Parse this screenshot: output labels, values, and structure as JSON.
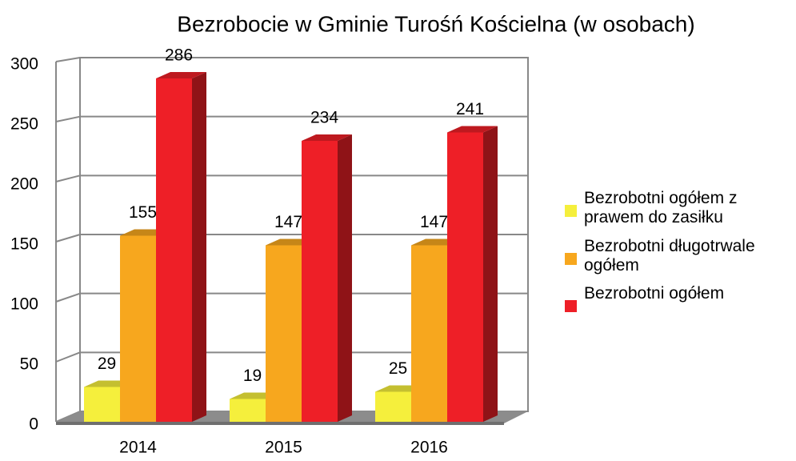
{
  "chart_data": {
    "type": "bar3d",
    "title": "Bezrobocie w Gminie Turośń Kościelna (w osobach)",
    "categories": [
      "2014",
      "2015",
      "2016"
    ],
    "series": [
      {
        "name": "Bezrobotni ogółem z prawem do zasiłku",
        "color": "#f5ef3c",
        "values": [
          29,
          19,
          25
        ]
      },
      {
        "name": "Bezrobotni długotrwale ogółem",
        "color": "#f7a71e",
        "values": [
          155,
          147,
          147
        ]
      },
      {
        "name": "Bezrobotni ogółem",
        "color": "#ee1f27",
        "values": [
          286,
          234,
          241
        ]
      }
    ],
    "ylim": [
      0,
      300
    ],
    "yticks": [
      0,
      50,
      100,
      150,
      200,
      250,
      300
    ],
    "grid": true,
    "legend": "right"
  }
}
